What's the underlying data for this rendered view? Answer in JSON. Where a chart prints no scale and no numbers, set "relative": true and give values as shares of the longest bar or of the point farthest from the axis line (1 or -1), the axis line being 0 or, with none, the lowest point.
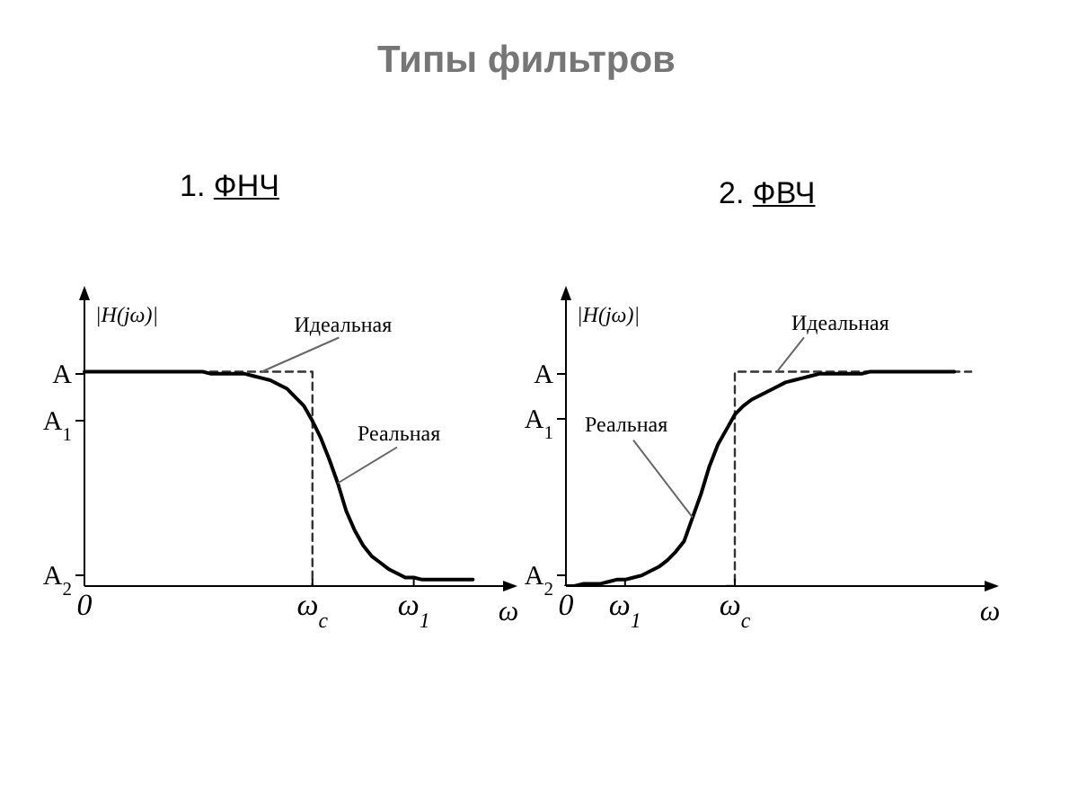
{
  "chart_data": [
    {
      "type": "line",
      "relative": true,
      "title": "Типы фильтров",
      "subtitle": "1. ФНЧ",
      "xlabel": "ω",
      "ylabel": "|H(jω)|",
      "marker": "none",
      "categories": [
        "0",
        null,
        null,
        null,
        null,
        null,
        null,
        null,
        null,
        null,
        null,
        null,
        null,
        null,
        null,
        null,
        null,
        null,
        null,
        null,
        null,
        null,
        null,
        null,
        null,
        null,
        null,
        "ω$_{c}$",
        null,
        null,
        null,
        null,
        null,
        null,
        null,
        null,
        null,
        null,
        null,
        "ω$_{1}$",
        null,
        null,
        null,
        null,
        null,
        null,
        null,
        null,
        null,
        null,
        null
      ],
      "annotations": [
        "A",
        "A$_{1}$",
        "A$_{2}$"
      ],
      "series": [
        {
          "name": "Идеальная",
          "type": "step",
          "color": "#333333",
          "line_style": "dashed",
          "values": [
            1,
            1,
            1,
            1,
            1,
            1,
            1,
            1,
            1,
            1,
            1,
            1,
            1,
            1,
            1,
            1,
            1,
            1,
            1,
            1,
            1,
            1,
            1,
            1,
            1,
            1,
            1,
            0,
            null,
            null,
            null,
            null,
            null,
            null,
            null,
            null,
            null,
            null,
            null,
            null,
            null,
            null,
            null,
            null,
            null,
            null,
            null,
            null,
            null,
            null,
            null
          ]
        },
        {
          "name": "Реальная",
          "color": "#000000",
          "line_style": "solid",
          "values": [
            1,
            1,
            1,
            1,
            1,
            1,
            1,
            1,
            1,
            1,
            1,
            1,
            1,
            1,
            1,
            0.99,
            0.99,
            0.99,
            0.99,
            0.99,
            0.98,
            0.97,
            0.96,
            0.94,
            0.92,
            0.88,
            0.84,
            0.77,
            0.69,
            0.59,
            0.48,
            0.35,
            0.26,
            0.19,
            0.14,
            0.11,
            0.08,
            0.06,
            0.04,
            0.04,
            0.03,
            0.03,
            0.03,
            0.03,
            0.03,
            0.03,
            0.03,
            null,
            null,
            null,
            null
          ]
        }
      ]
    },
    {
      "type": "line",
      "relative": true,
      "subtitle": "2. ФВЧ",
      "xlabel": "ω",
      "ylabel": "|H(jω)|",
      "marker": "none",
      "categories": [
        "0",
        null,
        null,
        null,
        null,
        null,
        null,
        "ω$_{1}$",
        null,
        null,
        null,
        null,
        null,
        null,
        null,
        null,
        null,
        null,
        null,
        null,
        "ω$_{c}$",
        null,
        null,
        null,
        null,
        null,
        null,
        null,
        null,
        null,
        null,
        null,
        null,
        null,
        null,
        null,
        null,
        null,
        null,
        null,
        null,
        null,
        null,
        null,
        null,
        null,
        null,
        null,
        null,
        null,
        null
      ],
      "annotations": [
        "A",
        "A$_{1}$",
        "A$_{2}$"
      ],
      "series": [
        {
          "name": "Идеальная",
          "type": "step",
          "color": "#333333",
          "line_style": "dashed",
          "values": [
            null,
            null,
            null,
            null,
            null,
            null,
            null,
            null,
            null,
            null,
            null,
            null,
            null,
            null,
            null,
            null,
            null,
            null,
            null,
            0,
            1,
            1,
            1,
            1,
            1,
            1,
            1,
            1,
            1,
            1,
            1,
            1,
            1,
            1,
            1,
            1,
            1,
            1,
            1,
            1,
            1,
            1,
            1,
            1,
            1,
            1,
            1,
            1,
            1,
            null,
            null
          ]
        },
        {
          "name": "Реальная",
          "color": "#000000",
          "line_style": "solid",
          "values": [
            0,
            0,
            0.01,
            0.01,
            0.01,
            0.02,
            0.03,
            0.03,
            0.04,
            0.05,
            0.07,
            0.09,
            0.12,
            0.16,
            0.21,
            0.32,
            0.43,
            0.56,
            0.66,
            0.73,
            0.8,
            0.84,
            0.87,
            0.89,
            0.91,
            0.93,
            0.95,
            0.96,
            0.97,
            0.98,
            0.99,
            0.99,
            0.99,
            0.99,
            0.99,
            0.99,
            1,
            1,
            1,
            1,
            1,
            1,
            1,
            1,
            1,
            1,
            1,
            null,
            null,
            null,
            null
          ]
        }
      ]
    }
  ]
}
